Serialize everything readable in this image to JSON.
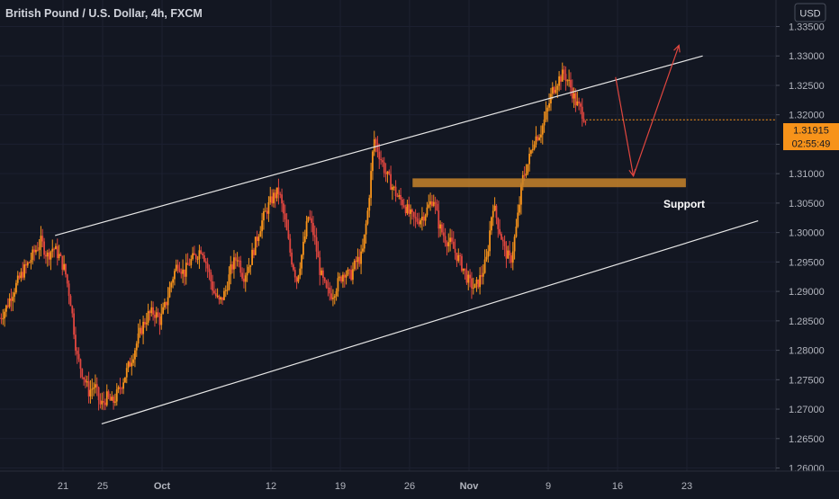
{
  "header": {
    "title": "British Pound / U.S. Dollar, 4h, FXCM"
  },
  "currency_badge": "USD",
  "price_axis": {
    "ticks": [
      "1.33500",
      "1.33000",
      "1.32500",
      "1.32000",
      "1.31500",
      "1.31000",
      "1.30500",
      "1.30000",
      "1.29500",
      "1.29000",
      "1.28500",
      "1.28000",
      "1.27500",
      "1.27000",
      "1.26500",
      "1.26000"
    ]
  },
  "last_price": {
    "value": "1.31915",
    "countdown": "02:55:49",
    "color": "#f7931a"
  },
  "time_axis": {
    "labels": [
      {
        "text": "21",
        "day": 0
      },
      {
        "text": "25",
        "day": 4
      },
      {
        "text": "Oct",
        "day": 10,
        "bold": true
      },
      {
        "text": "12",
        "day": 21
      },
      {
        "text": "19",
        "day": 28
      },
      {
        "text": "26",
        "day": 35
      },
      {
        "text": "Nov",
        "day": 41,
        "bold": true
      },
      {
        "text": "9",
        "day": 49
      },
      {
        "text": "16",
        "day": 56
      },
      {
        "text": "23",
        "day": 63
      }
    ]
  },
  "annotations": {
    "support_label": "Support",
    "support_zone": {
      "y_low": 1.3077,
      "y_high": 1.3092,
      "from_day": 35.3,
      "to_day": 62.9,
      "color": "#c8842a"
    },
    "channel_upper": [
      [
        -0.8,
        1.2995
      ],
      [
        64.6,
        1.33
      ]
    ],
    "channel_lower": [
      [
        3.9,
        1.2675
      ],
      [
        70.2,
        1.302
      ]
    ],
    "arrow_down": [
      [
        55.8,
        1.3264
      ],
      [
        57.6,
        1.3096
      ]
    ],
    "arrow_up": [
      [
        57.6,
        1.3096
      ],
      [
        62.2,
        1.3318
      ]
    ],
    "line_color": "#e6e6e6",
    "arrow_color": "#e0463f"
  },
  "chart_data": {
    "type": "candlestick",
    "title": "British Pound / U.S. Dollar, 4h, FXCM",
    "x_axis": "day offset from September 21",
    "y_range": [
      1.2555,
      1.3395
    ],
    "candle_colors": {
      "up": "#f7931a",
      "down": "#e0463f"
    },
    "closes": [
      [
        -6.4,
        1.2855
      ],
      [
        -5.8,
        1.287
      ],
      [
        -5.2,
        1.2895
      ],
      [
        -4.6,
        1.2915
      ],
      [
        -4.0,
        1.2935
      ],
      [
        -3.4,
        1.295
      ],
      [
        -2.8,
        1.297
      ],
      [
        -2.2,
        1.2985
      ],
      [
        -1.6,
        1.296
      ],
      [
        -1.0,
        1.2975
      ],
      [
        -0.4,
        1.296
      ],
      [
        0.2,
        1.2935
      ],
      [
        0.8,
        1.288
      ],
      [
        1.4,
        1.279
      ],
      [
        2.0,
        1.276
      ],
      [
        2.6,
        1.273
      ],
      [
        3.2,
        1.274
      ],
      [
        3.8,
        1.2705
      ],
      [
        4.4,
        1.272
      ],
      [
        5.0,
        1.271
      ],
      [
        5.6,
        1.273
      ],
      [
        6.2,
        1.2755
      ],
      [
        6.8,
        1.278
      ],
      [
        7.4,
        1.281
      ],
      [
        8.0,
        1.284
      ],
      [
        8.6,
        1.286
      ],
      [
        9.2,
        1.2865
      ],
      [
        9.8,
        1.285
      ],
      [
        10.4,
        1.288
      ],
      [
        11.0,
        1.292
      ],
      [
        11.6,
        1.295
      ],
      [
        12.2,
        1.293
      ],
      [
        12.8,
        1.295
      ],
      [
        13.4,
        1.296
      ],
      [
        14.0,
        1.2975
      ],
      [
        14.6,
        1.294
      ],
      [
        15.2,
        1.29
      ],
      [
        15.8,
        1.288
      ],
      [
        16.4,
        1.29
      ],
      [
        17.0,
        1.294
      ],
      [
        17.6,
        1.296
      ],
      [
        18.2,
        1.2925
      ],
      [
        18.8,
        1.2945
      ],
      [
        19.4,
        1.298
      ],
      [
        20.0,
        1.3015
      ],
      [
        20.6,
        1.304
      ],
      [
        21.2,
        1.306
      ],
      [
        21.8,
        1.307
      ],
      [
        22.4,
        1.302
      ],
      [
        23.0,
        1.296
      ],
      [
        23.6,
        1.292
      ],
      [
        24.2,
        1.297
      ],
      [
        24.8,
        1.303
      ],
      [
        25.4,
        1.299
      ],
      [
        26.0,
        1.293
      ],
      [
        26.6,
        1.29
      ],
      [
        27.2,
        1.2895
      ],
      [
        27.8,
        1.2915
      ],
      [
        28.4,
        1.2935
      ],
      [
        29.0,
        1.2925
      ],
      [
        29.6,
        1.295
      ],
      [
        30.2,
        1.296
      ],
      [
        30.8,
        1.304
      ],
      [
        31.4,
        1.316
      ],
      [
        32.0,
        1.313
      ],
      [
        32.6,
        1.31
      ],
      [
        33.2,
        1.308
      ],
      [
        33.8,
        1.306
      ],
      [
        34.4,
        1.305
      ],
      [
        35.0,
        1.303
      ],
      [
        35.6,
        1.302
      ],
      [
        36.2,
        1.3025
      ],
      [
        36.8,
        1.304
      ],
      [
        37.4,
        1.306
      ],
      [
        38.0,
        1.301
      ],
      [
        38.6,
        1.299
      ],
      [
        39.2,
        1.298
      ],
      [
        39.8,
        1.296
      ],
      [
        40.4,
        1.294
      ],
      [
        41.0,
        1.2915
      ],
      [
        41.6,
        1.2905
      ],
      [
        42.2,
        1.2925
      ],
      [
        42.8,
        1.2955
      ],
      [
        43.4,
        1.305
      ],
      [
        44.0,
        1.301
      ],
      [
        44.6,
        1.297
      ],
      [
        45.2,
        1.295
      ],
      [
        45.8,
        1.301
      ],
      [
        46.4,
        1.309
      ],
      [
        47.0,
        1.312
      ],
      [
        47.6,
        1.316
      ],
      [
        48.2,
        1.317
      ],
      [
        48.8,
        1.32
      ],
      [
        49.4,
        1.324
      ],
      [
        50.0,
        1.326
      ],
      [
        50.6,
        1.327
      ],
      [
        51.2,
        1.325
      ],
      [
        51.8,
        1.322
      ],
      [
        52.4,
        1.3205
      ],
      [
        52.8,
        1.3192
      ]
    ]
  }
}
